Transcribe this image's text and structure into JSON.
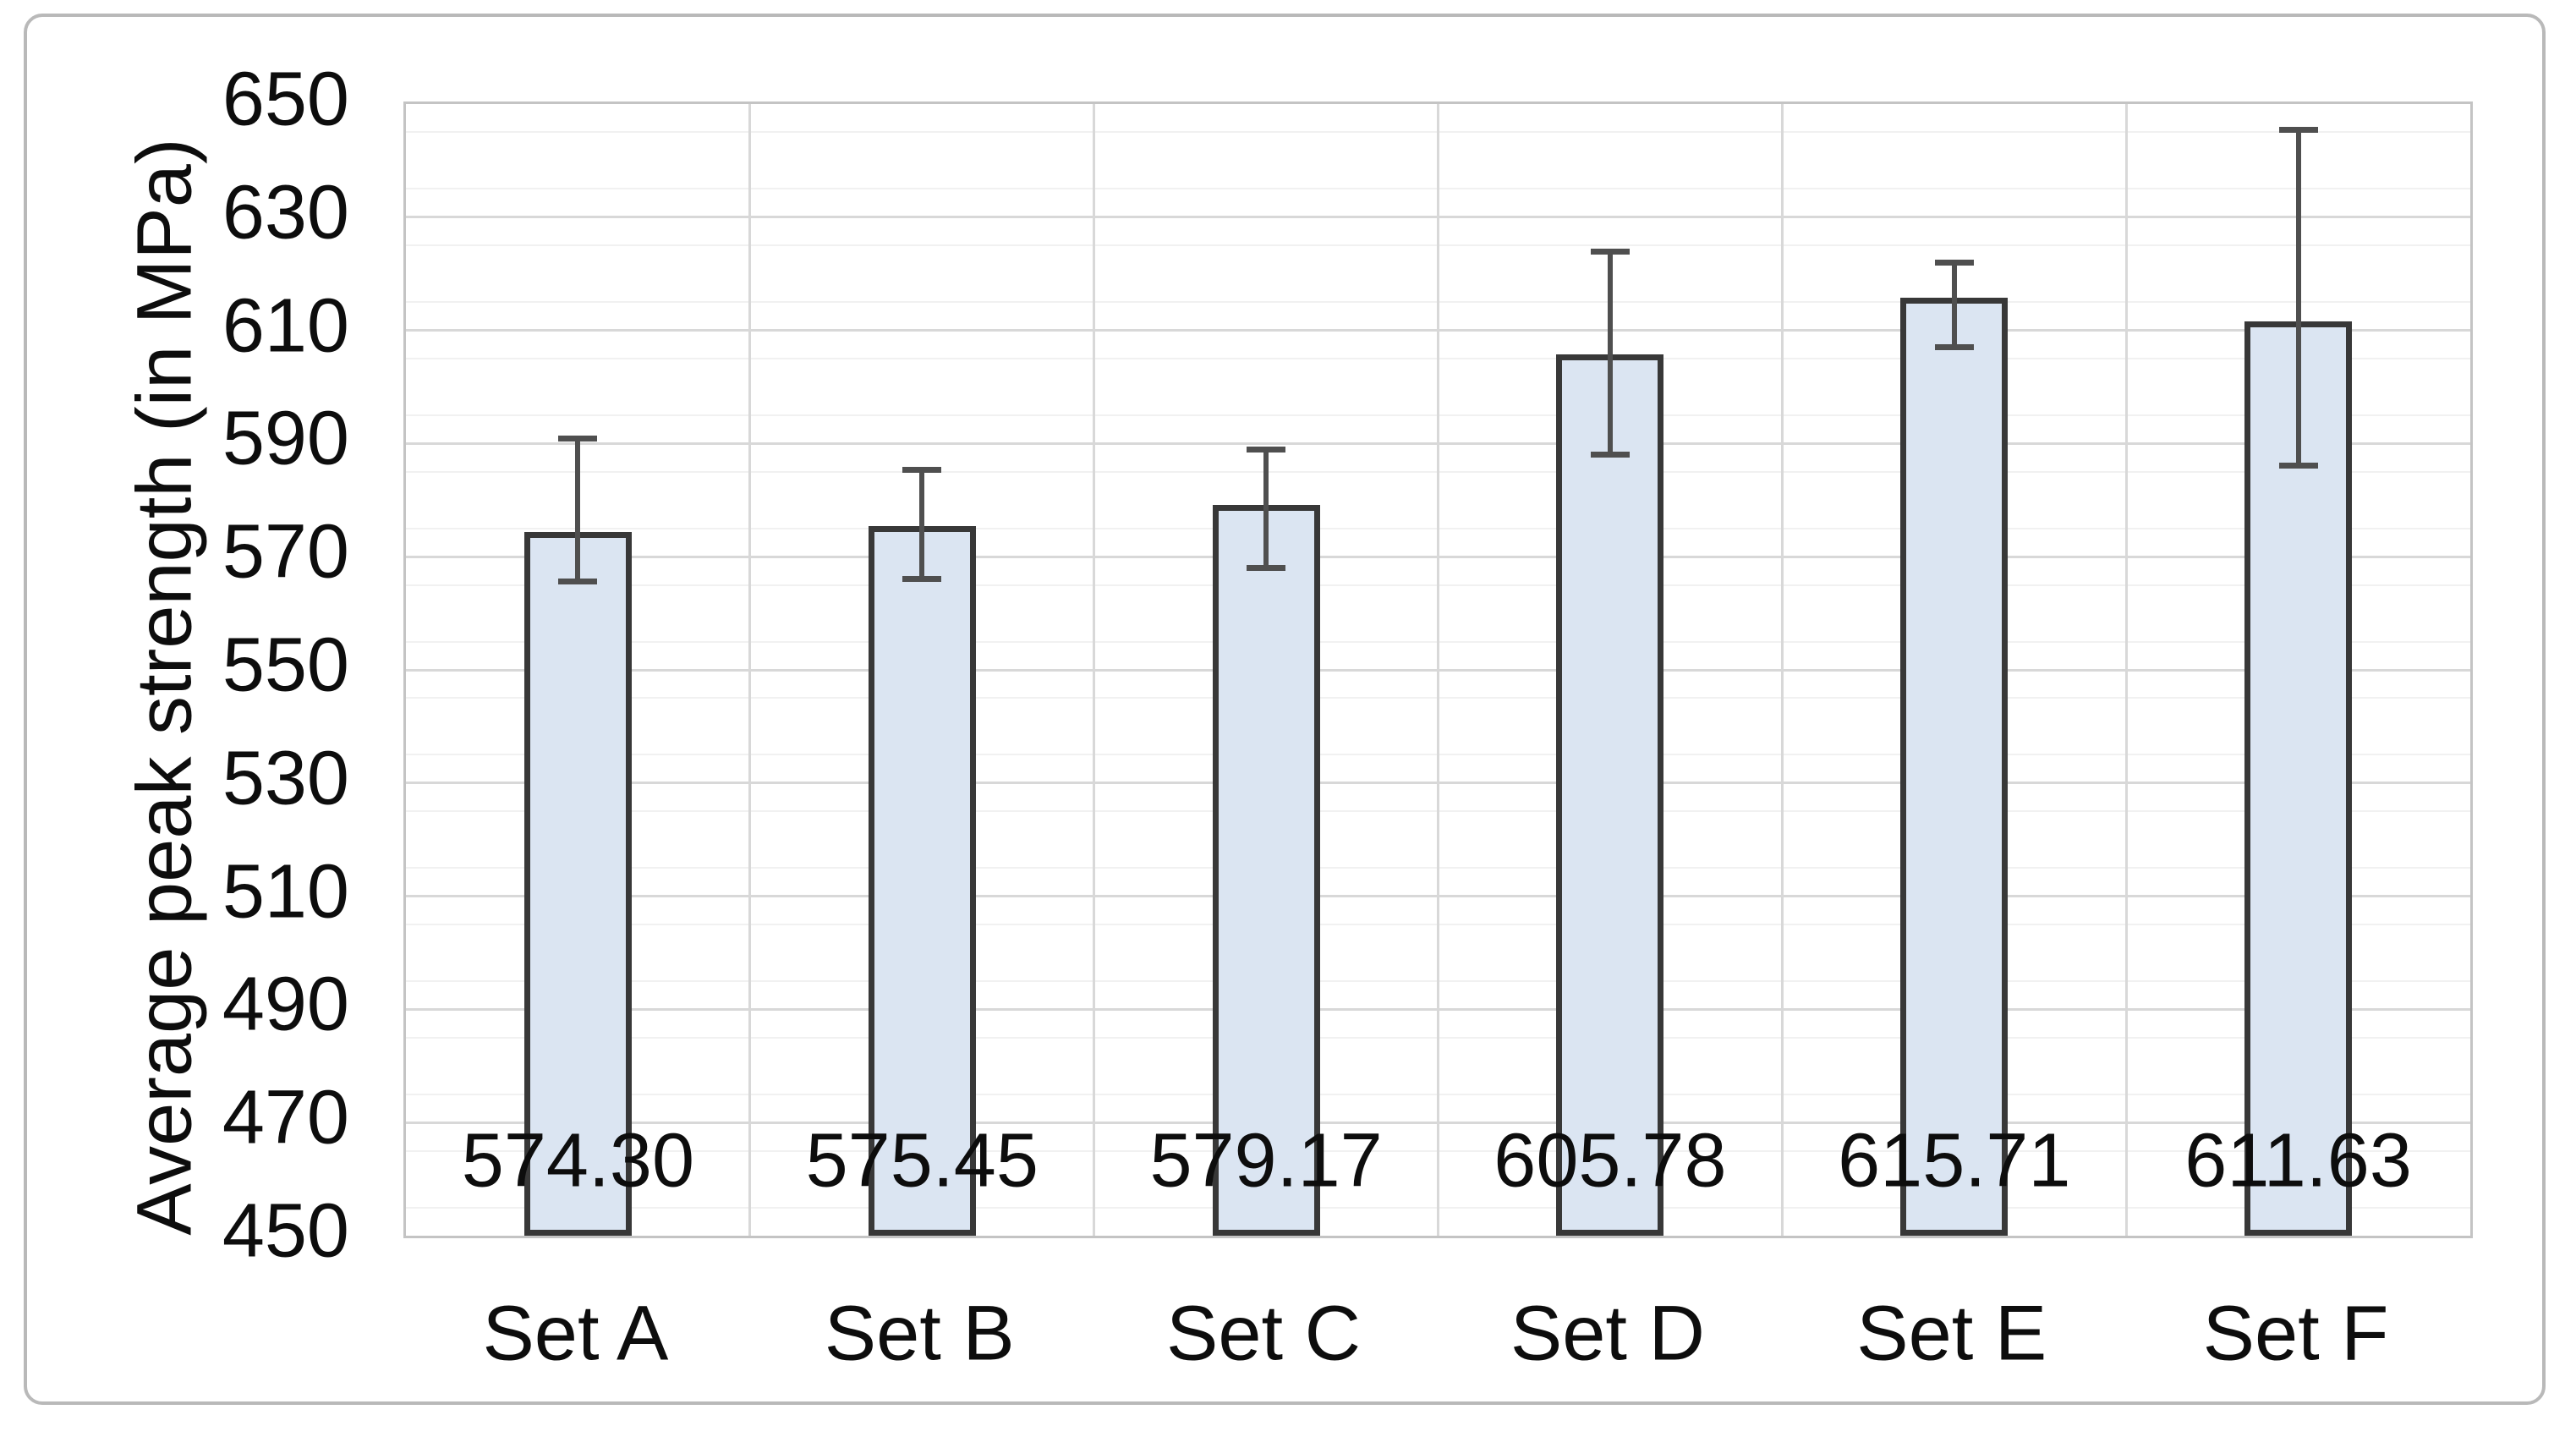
{
  "chart_data": {
    "type": "bar",
    "title": "",
    "ylabel": "Average peak strength (in MPa)",
    "xlabel": "",
    "ylim": [
      450,
      650
    ],
    "y_major_step": 20,
    "y_minor_step": 5,
    "y_tick_labels": [
      "650",
      "630",
      "610",
      "590",
      "570",
      "550",
      "530",
      "510",
      "490",
      "470",
      "450"
    ],
    "grid": {
      "horizontal_major": true,
      "horizontal_minor": true,
      "vertical_category_separators": true
    },
    "legend_position": "none",
    "categories": [
      "Set A",
      "Set B",
      "Set C",
      "Set D",
      "Set E",
      "Set F"
    ],
    "values": [
      574.3,
      575.45,
      579.17,
      605.78,
      615.71,
      611.63
    ],
    "data_labels": [
      "574.30",
      "575.45",
      "579.17",
      "605.78",
      "615.71",
      "611.63"
    ],
    "data_label_position": "inside-base",
    "error_bars": [
      {
        "high": 591.0,
        "low": 565.5
      },
      {
        "high": 585.5,
        "low": 566.0
      },
      {
        "high": 589.0,
        "low": 568.0
      },
      {
        "high": 624.0,
        "low": 588.0
      },
      {
        "high": 622.0,
        "low": 607.0
      },
      {
        "high": 645.5,
        "low": 586.0
      }
    ],
    "colors": {
      "bar_fill": "#dbe5f2",
      "bar_border": "#383838",
      "error_bar": "#4f4f4f",
      "grid_major": "#d8d8d8",
      "grid_minor": "#f1f1f1",
      "plot_border": "#c4c4c4",
      "outer_border": "#b9b9b9",
      "text": "#0d0d0d",
      "background": "#ffffff"
    }
  }
}
